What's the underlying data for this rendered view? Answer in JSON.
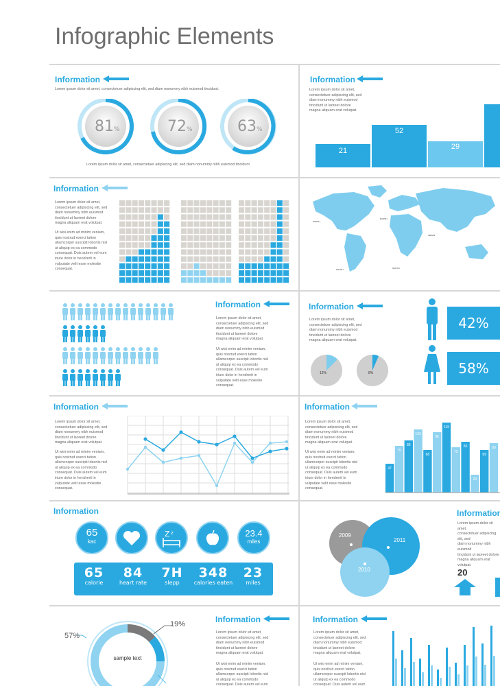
{
  "page": {
    "title": "Infographic Elements"
  },
  "common": {
    "info": "Information",
    "lorem_1": "Lorem ipsum dolor sit amet, consectetuer adipiscing elit, sed diam nonummy nibh euismod tincidunt.",
    "lorem_block": "Lorem ipsum dolor sit amet,\nconsectetuer adipiscing elit, sed\ndiam nonummy nibh euismod\ntincidunt ut laoreet dolore\nmagna aliquam erat volutpat.",
    "lorem_block_2": "Ut wisi enim ad minim veniam,\nquis nostrud exerci tation\nullamcorper suscipit lobortis nisl\nut aliquip ex ea commodo\nconsequat. Duis autem vel eum\niriure dolor in hendrerit in\nvulputate velit esse molestie\nconsequat."
  },
  "panel1": {
    "rings": [
      "81",
      "72",
      "63"
    ],
    "pct": "%"
  },
  "panel2": {
    "bars": [
      "21",
      "52",
      "29"
    ]
  },
  "panel6": {
    "male_pct": "42%",
    "female_pct": "58%",
    "pie1": "12%",
    "pie2": "8%"
  },
  "panel8": {
    "bar_labels": [
      "47",
      "75",
      "86",
      "103",
      "68",
      "96",
      "115",
      "72",
      "83",
      "29",
      "69",
      "80"
    ]
  },
  "panel9": {
    "icons": [
      {
        "num": "65",
        "sub": "kac"
      },
      {
        "num": "",
        "sub": ""
      },
      {
        "num": "",
        "sub": ""
      },
      {
        "num": "",
        "sub": ""
      },
      {
        "num": "23.4",
        "sub": "miles"
      }
    ],
    "stats": [
      {
        "num": "65",
        "label": "calorie"
      },
      {
        "num": "84",
        "label": "heart rate"
      },
      {
        "num": "7H",
        "label": "slepp"
      },
      {
        "num": "348",
        "label": "calories eaten"
      },
      {
        "num": "23",
        "label": "miles"
      }
    ]
  },
  "panel10": {
    "years": [
      "2009",
      "2011",
      "2010"
    ],
    "value": "20"
  },
  "panel11": {
    "p1": "19%",
    "p2": "57%",
    "center": "sample text"
  },
  "colors": {
    "accent": "#2aa9e0",
    "light": "#8fd3f0",
    "grey": "#cfcfcf"
  }
}
